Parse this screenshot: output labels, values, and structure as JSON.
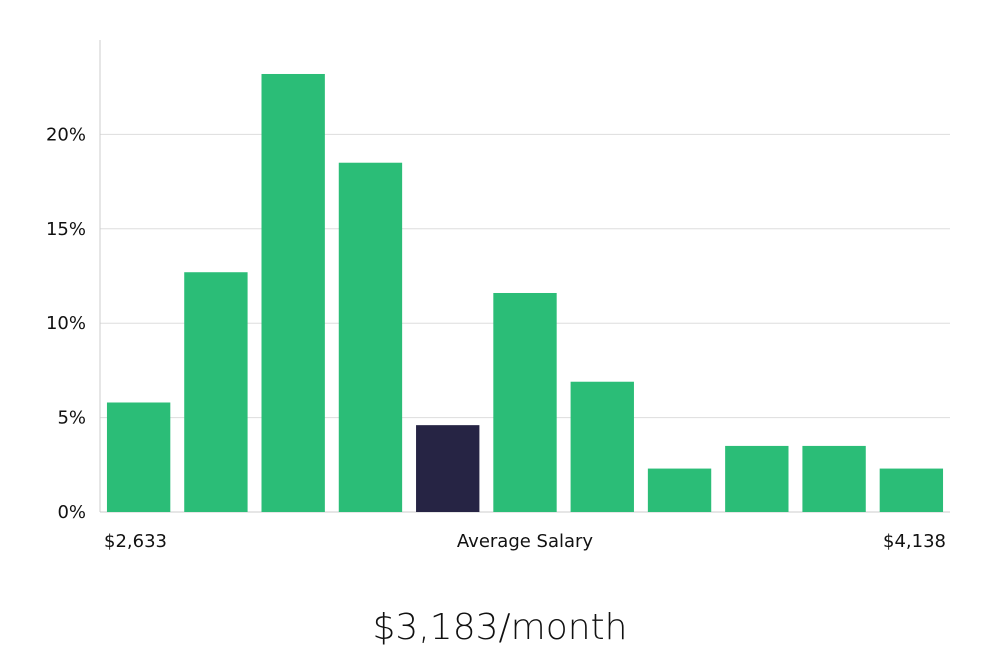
{
  "chart_data": {
    "type": "bar",
    "title": "",
    "xlabel": "Average Salary",
    "ylabel": "",
    "x_min_label": "$2,633",
    "x_max_label": "$4,138",
    "ylim": [
      0,
      25
    ],
    "yticks": [
      0,
      5,
      10,
      15,
      20
    ],
    "ytick_labels": [
      "0%",
      "5%",
      "10%",
      "15%",
      "20%"
    ],
    "grid": true,
    "values": [
      5.8,
      12.7,
      23.2,
      18.5,
      4.6,
      11.6,
      6.9,
      2.3,
      3.5,
      3.5,
      2.3
    ],
    "highlight_index": 4,
    "colors": {
      "bar": "#2bbd77",
      "highlight": "#262444",
      "grid": "#dddddd",
      "axis": "#cccccc"
    }
  },
  "summary": {
    "average_salary": "$3,183/month"
  }
}
